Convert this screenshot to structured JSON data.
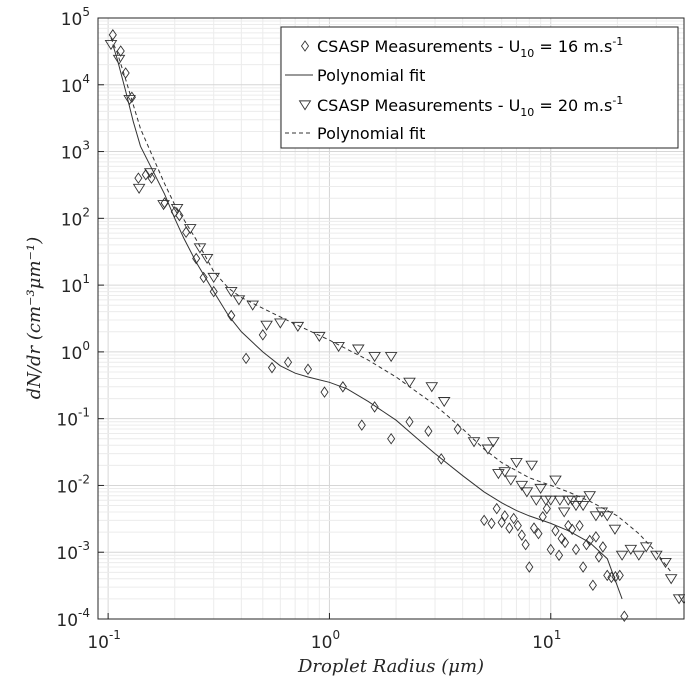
{
  "chart_data": {
    "type": "scatter",
    "title": "",
    "xlabel": "Droplet Radius (μm)",
    "ylabel": "dN/dr (cm⁻³μm⁻¹)",
    "xscale": "log",
    "yscale": "log",
    "xlim": [
      0.09,
      40
    ],
    "ylim": [
      0.0001,
      100000
    ],
    "grid": true,
    "legend_position": "top-right",
    "x_tick_labels": [
      {
        "value": 0.1,
        "base": "10",
        "exp": "-1"
      },
      {
        "value": 1,
        "base": "10",
        "exp": "0"
      },
      {
        "value": 10,
        "base": "10",
        "exp": "1"
      }
    ],
    "y_tick_labels": [
      {
        "value": 0.0001,
        "base": "10",
        "exp": "-4"
      },
      {
        "value": 0.001,
        "base": "10",
        "exp": "-3"
      },
      {
        "value": 0.01,
        "base": "10",
        "exp": "-2"
      },
      {
        "value": 0.1,
        "base": "10",
        "exp": "-1"
      },
      {
        "value": 1,
        "base": "10",
        "exp": "0"
      },
      {
        "value": 10,
        "base": "10",
        "exp": "1"
      },
      {
        "value": 100,
        "base": "10",
        "exp": "2"
      },
      {
        "value": 1000,
        "base": "10",
        "exp": "3"
      },
      {
        "value": 10000,
        "base": "10",
        "exp": "4"
      },
      {
        "value": 100000,
        "base": "10",
        "exp": "5"
      }
    ],
    "legend": [
      {
        "marker": "diamond",
        "text": "CSASP Measurements - U",
        "sub": "10",
        "suffix": " = 16 m.s",
        "sup": "-1"
      },
      {
        "marker": "solid-line",
        "text": "Polynomial fit",
        "sub": "",
        "suffix": "",
        "sup": ""
      },
      {
        "marker": "triangle-down",
        "text": "CSASP Measurements - U",
        "sub": "10",
        "suffix": " = 20 m.s",
        "sup": "-1"
      },
      {
        "marker": "dashed-line",
        "text": "Polynomial fit",
        "sub": "",
        "suffix": "",
        "sup": ""
      }
    ],
    "series": [
      {
        "name": "CSASP Measurements - U10 = 16 m.s-1",
        "kind": "scatter",
        "marker": "diamond",
        "points": [
          [
            0.105,
            56000
          ],
          [
            0.114,
            32000
          ],
          [
            0.12,
            15000
          ],
          [
            0.128,
            6500
          ],
          [
            0.137,
            400
          ],
          [
            0.148,
            450
          ],
          [
            0.157,
            400
          ],
          [
            0.18,
            170
          ],
          [
            0.2,
            125
          ],
          [
            0.21,
            110
          ],
          [
            0.225,
            62
          ],
          [
            0.25,
            25
          ],
          [
            0.27,
            13
          ],
          [
            0.3,
            8
          ],
          [
            0.36,
            3.5
          ],
          [
            0.42,
            0.8
          ],
          [
            0.5,
            1.8
          ],
          [
            0.55,
            0.58
          ],
          [
            0.65,
            0.7
          ],
          [
            0.8,
            0.55
          ],
          [
            0.95,
            0.25
          ],
          [
            1.15,
            0.3
          ],
          [
            1.4,
            0.08
          ],
          [
            1.6,
            0.15
          ],
          [
            1.9,
            0.05
          ],
          [
            2.3,
            0.09
          ],
          [
            2.8,
            0.065
          ],
          [
            3.2,
            0.025
          ],
          [
            3.8,
            0.07
          ],
          [
            5.0,
            0.003
          ],
          [
            5.4,
            0.0027
          ],
          [
            5.7,
            0.0045
          ],
          [
            6.0,
            0.0028
          ],
          [
            6.2,
            0.0035
          ],
          [
            6.5,
            0.0023
          ],
          [
            6.8,
            0.0032
          ],
          [
            7.1,
            0.0025
          ],
          [
            7.4,
            0.0018
          ],
          [
            7.7,
            0.0013
          ],
          [
            8.0,
            0.0006
          ],
          [
            8.4,
            0.0023
          ],
          [
            8.8,
            0.0019
          ],
          [
            9.2,
            0.0034
          ],
          [
            9.6,
            0.0045
          ],
          [
            10.0,
            0.0011
          ],
          [
            10.5,
            0.0021
          ],
          [
            10.9,
            0.0009
          ],
          [
            11.2,
            0.0016
          ],
          [
            11.6,
            0.0014
          ],
          [
            12.0,
            0.0025
          ],
          [
            12.5,
            0.0022
          ],
          [
            13.0,
            0.0011
          ],
          [
            13.5,
            0.0025
          ],
          [
            14.0,
            0.0006
          ],
          [
            14.5,
            0.0013
          ],
          [
            15.0,
            0.0015
          ],
          [
            15.5,
            0.00032
          ],
          [
            16.0,
            0.0017
          ],
          [
            16.5,
            0.00085
          ],
          [
            17.2,
            0.0012
          ],
          [
            18.0,
            0.00045
          ],
          [
            18.8,
            0.00042
          ],
          [
            19.6,
            0.00043
          ],
          [
            20.5,
            0.00045
          ],
          [
            21.5,
            0.00011
          ]
        ]
      },
      {
        "name": "Polynomial fit (U10 = 16 m.s-1)",
        "kind": "line",
        "style": "solid",
        "points": [
          [
            0.105,
            40000
          ],
          [
            0.11,
            24000
          ],
          [
            0.12,
            8000
          ],
          [
            0.13,
            2800
          ],
          [
            0.14,
            1200
          ],
          [
            0.16,
            500
          ],
          [
            0.18,
            230
          ],
          [
            0.2,
            100
          ],
          [
            0.22,
            50
          ],
          [
            0.25,
            22
          ],
          [
            0.3,
            8
          ],
          [
            0.35,
            3.5
          ],
          [
            0.4,
            2.0
          ],
          [
            0.5,
            1.0
          ],
          [
            0.6,
            0.62
          ],
          [
            0.7,
            0.48
          ],
          [
            0.8,
            0.42
          ],
          [
            1.0,
            0.35
          ],
          [
            1.2,
            0.28
          ],
          [
            1.5,
            0.18
          ],
          [
            2.0,
            0.095
          ],
          [
            2.5,
            0.05
          ],
          [
            3.0,
            0.03
          ],
          [
            4.0,
            0.014
          ],
          [
            5.0,
            0.008
          ],
          [
            6.0,
            0.0055
          ],
          [
            7.0,
            0.0042
          ],
          [
            8.0,
            0.0035
          ],
          [
            10.0,
            0.0027
          ],
          [
            12.0,
            0.0021
          ],
          [
            15.0,
            0.0014
          ],
          [
            18.0,
            0.0008
          ],
          [
            21.0,
            0.0002
          ]
        ]
      },
      {
        "name": "CSASP Measurements - U10 = 20 m.s-1",
        "kind": "scatter",
        "marker": "triangle-down",
        "points": [
          [
            0.103,
            40000
          ],
          [
            0.112,
            24000
          ],
          [
            0.125,
            6000
          ],
          [
            0.138,
            280
          ],
          [
            0.155,
            480
          ],
          [
            0.178,
            160
          ],
          [
            0.205,
            140
          ],
          [
            0.235,
            70
          ],
          [
            0.26,
            36
          ],
          [
            0.28,
            25
          ],
          [
            0.3,
            13
          ],
          [
            0.36,
            8
          ],
          [
            0.39,
            6
          ],
          [
            0.45,
            5
          ],
          [
            0.52,
            2.5
          ],
          [
            0.6,
            2.7
          ],
          [
            0.72,
            2.4
          ],
          [
            0.9,
            1.7
          ],
          [
            1.1,
            1.2
          ],
          [
            1.35,
            1.1
          ],
          [
            1.6,
            0.85
          ],
          [
            1.9,
            0.85
          ],
          [
            2.3,
            0.35
          ],
          [
            2.9,
            0.3
          ],
          [
            3.3,
            0.18
          ],
          [
            4.5,
            0.045
          ],
          [
            5.2,
            0.035
          ],
          [
            5.5,
            0.045
          ],
          [
            5.8,
            0.015
          ],
          [
            6.2,
            0.016
          ],
          [
            6.6,
            0.012
          ],
          [
            7.0,
            0.022
          ],
          [
            7.4,
            0.01
          ],
          [
            7.8,
            0.008
          ],
          [
            8.2,
            0.02
          ],
          [
            8.6,
            0.006
          ],
          [
            9.0,
            0.009
          ],
          [
            9.5,
            0.006
          ],
          [
            10.0,
            0.006
          ],
          [
            10.5,
            0.012
          ],
          [
            11.0,
            0.006
          ],
          [
            11.5,
            0.004
          ],
          [
            12.0,
            0.006
          ],
          [
            12.5,
            0.006
          ],
          [
            13.0,
            0.005
          ],
          [
            13.5,
            0.006
          ],
          [
            14.0,
            0.005
          ],
          [
            15.0,
            0.007
          ],
          [
            16.0,
            0.0035
          ],
          [
            17.0,
            0.004
          ],
          [
            18.0,
            0.0035
          ],
          [
            19.5,
            0.0022
          ],
          [
            21.0,
            0.0009
          ],
          [
            23.0,
            0.0011
          ],
          [
            25.0,
            0.0009
          ],
          [
            27.0,
            0.0012
          ],
          [
            30.0,
            0.0009
          ],
          [
            33.0,
            0.0007
          ],
          [
            35.0,
            0.0004
          ],
          [
            38.0,
            0.0002
          ],
          [
            40.0,
            0.0002
          ]
        ]
      },
      {
        "name": "Polynomial fit (U10 = 20 m.s-1)",
        "kind": "line",
        "style": "dashed",
        "points": [
          [
            0.103,
            50000
          ],
          [
            0.11,
            30000
          ],
          [
            0.12,
            12000
          ],
          [
            0.13,
            5000
          ],
          [
            0.14,
            2200
          ],
          [
            0.16,
            800
          ],
          [
            0.18,
            330
          ],
          [
            0.2,
            160
          ],
          [
            0.25,
            48
          ],
          [
            0.3,
            16
          ],
          [
            0.35,
            9
          ],
          [
            0.4,
            6.5
          ],
          [
            0.5,
            4.5
          ],
          [
            0.7,
            2.6
          ],
          [
            1.0,
            1.5
          ],
          [
            1.5,
            0.75
          ],
          [
            2.0,
            0.42
          ],
          [
            3.0,
            0.16
          ],
          [
            4.0,
            0.07
          ],
          [
            5.0,
            0.035
          ],
          [
            6.0,
            0.022
          ],
          [
            8.0,
            0.013
          ],
          [
            10.0,
            0.01
          ],
          [
            12.0,
            0.008
          ],
          [
            15.0,
            0.0058
          ],
          [
            20.0,
            0.0035
          ],
          [
            25.0,
            0.0019
          ],
          [
            30.0,
            0.001
          ],
          [
            35.0,
            0.0005
          ]
        ]
      }
    ]
  }
}
